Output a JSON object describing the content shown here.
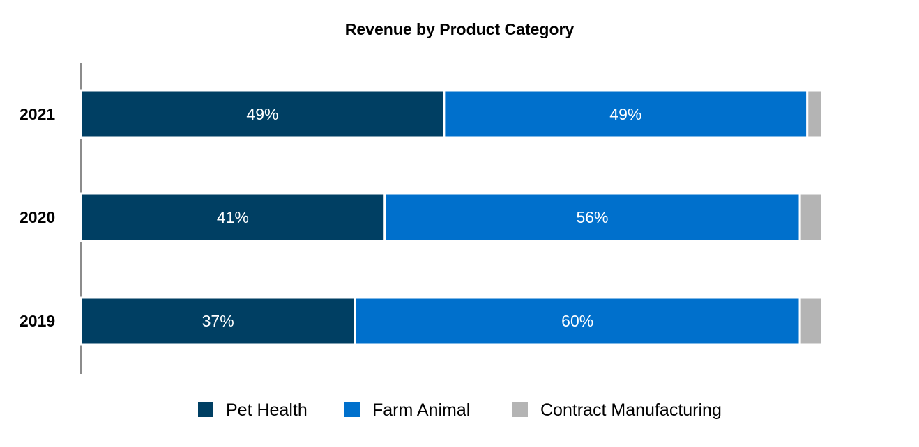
{
  "chart_data": {
    "type": "bar",
    "orientation": "horizontal",
    "stacked": true,
    "title": "Revenue by Product Category",
    "xlabel": "",
    "ylabel": "",
    "xlim": [
      0,
      100
    ],
    "grid": false,
    "legend_position": "bottom",
    "categories": [
      "2021",
      "2020",
      "2019"
    ],
    "series": [
      {
        "name": "Pet Health",
        "color": "#003f63",
        "values": [
          49,
          41,
          37
        ],
        "labels": [
          "49%",
          "41%",
          "37%"
        ]
      },
      {
        "name": "Farm Animal",
        "color": "#0070cc",
        "values": [
          49,
          56,
          60
        ],
        "labels": [
          "49%",
          "56%",
          "60%"
        ]
      },
      {
        "name": "Contract Manufacturing",
        "color": "#b4b4b4",
        "values": [
          2,
          3,
          3
        ],
        "labels": [
          "",
          "",
          ""
        ]
      }
    ]
  }
}
